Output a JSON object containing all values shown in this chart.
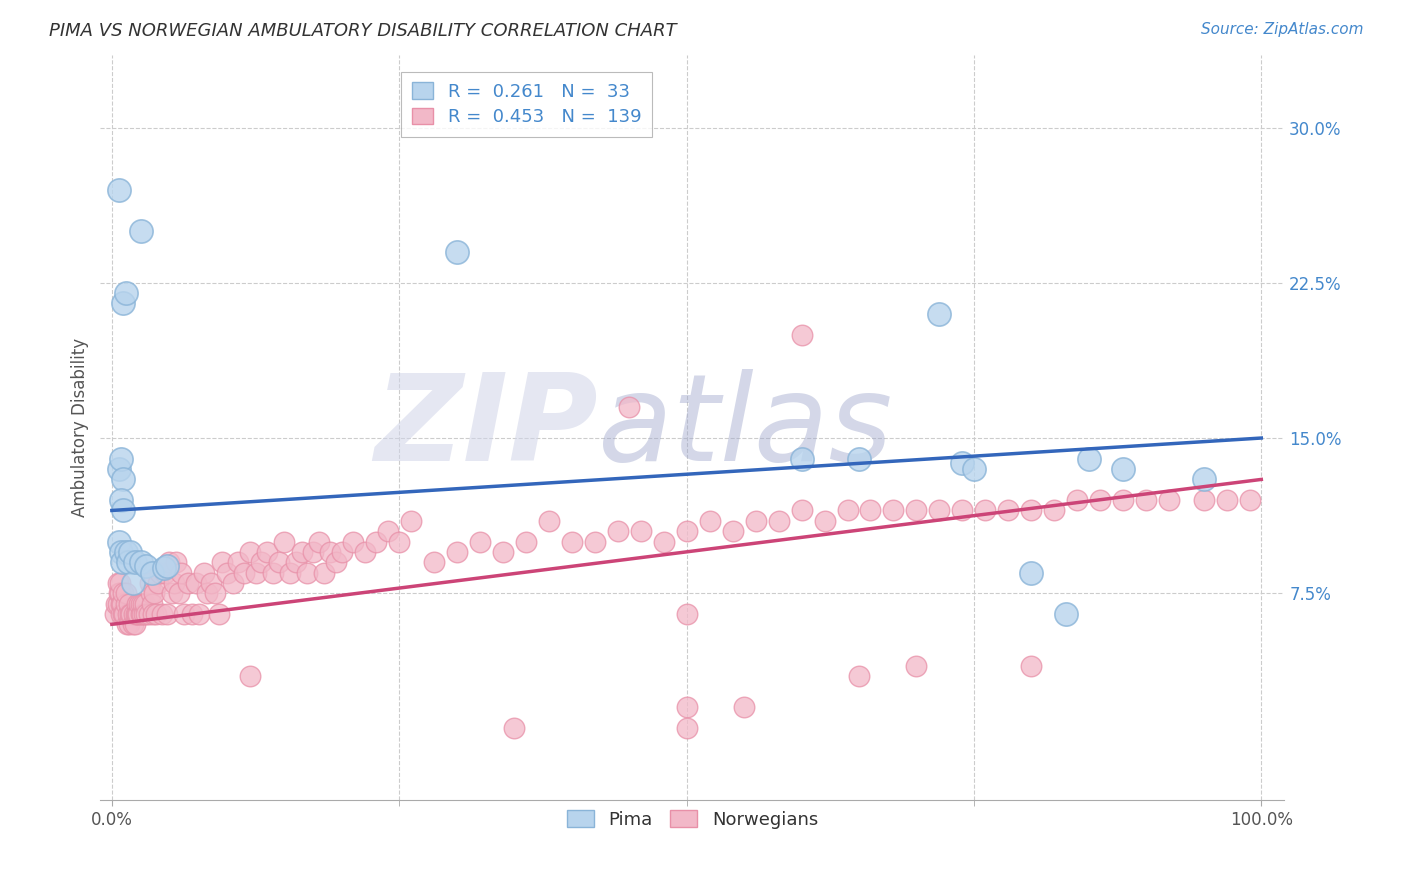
{
  "title": "PIMA VS NORWEGIAN AMBULATORY DISABILITY CORRELATION CHART",
  "source": "Source: ZipAtlas.com",
  "ylabel": "Ambulatory Disability",
  "xlabel": "",
  "xlim": [
    -0.01,
    1.02
  ],
  "ylim": [
    -0.025,
    0.335
  ],
  "yticks": [
    0.075,
    0.15,
    0.225,
    0.3
  ],
  "ytick_labels": [
    "7.5%",
    "15.0%",
    "22.5%",
    "30.0%"
  ],
  "xticks": [
    0.0,
    1.0
  ],
  "xtick_labels": [
    "0.0%",
    "100.0%"
  ],
  "pima_R": 0.261,
  "pima_N": 33,
  "norw_R": 0.453,
  "norw_N": 139,
  "background_color": "#ffffff",
  "grid_color": "#cccccc",
  "pima_color": "#8ab4d8",
  "pima_fill": "#b8d4ed",
  "norw_color": "#e890a8",
  "norw_fill": "#f2b8c8",
  "line_pima_color": "#3366bb",
  "line_norw_color": "#cc4477",
  "pima_line_x0": 0.0,
  "pima_line_x1": 1.0,
  "pima_line_y0": 0.115,
  "pima_line_y1": 0.15,
  "norw_line_x0": 0.0,
  "norw_line_x1": 1.0,
  "norw_line_y0": 0.06,
  "norw_line_y1": 0.13,
  "pima_scatter": [
    [
      0.006,
      0.27
    ],
    [
      0.01,
      0.215
    ],
    [
      0.012,
      0.22
    ],
    [
      0.025,
      0.25
    ],
    [
      0.006,
      0.135
    ],
    [
      0.008,
      0.14
    ],
    [
      0.01,
      0.13
    ],
    [
      0.008,
      0.12
    ],
    [
      0.01,
      0.115
    ],
    [
      0.006,
      0.1
    ],
    [
      0.008,
      0.095
    ],
    [
      0.009,
      0.09
    ],
    [
      0.012,
      0.095
    ],
    [
      0.014,
      0.09
    ],
    [
      0.016,
      0.095
    ],
    [
      0.018,
      0.08
    ],
    [
      0.02,
      0.09
    ],
    [
      0.025,
      0.09
    ],
    [
      0.03,
      0.088
    ],
    [
      0.035,
      0.085
    ],
    [
      0.045,
      0.087
    ],
    [
      0.048,
      0.088
    ],
    [
      0.3,
      0.24
    ],
    [
      0.6,
      0.14
    ],
    [
      0.65,
      0.14
    ],
    [
      0.72,
      0.21
    ],
    [
      0.74,
      0.138
    ],
    [
      0.75,
      0.135
    ],
    [
      0.8,
      0.085
    ],
    [
      0.83,
      0.065
    ],
    [
      0.85,
      0.14
    ],
    [
      0.88,
      0.135
    ],
    [
      0.95,
      0.13
    ]
  ],
  "norw_scatter": [
    [
      0.003,
      0.065
    ],
    [
      0.004,
      0.07
    ],
    [
      0.005,
      0.07
    ],
    [
      0.005,
      0.08
    ],
    [
      0.006,
      0.075
    ],
    [
      0.007,
      0.075
    ],
    [
      0.007,
      0.08
    ],
    [
      0.008,
      0.07
    ],
    [
      0.008,
      0.065
    ],
    [
      0.009,
      0.07
    ],
    [
      0.01,
      0.065
    ],
    [
      0.01,
      0.075
    ],
    [
      0.011,
      0.065
    ],
    [
      0.012,
      0.07
    ],
    [
      0.012,
      0.075
    ],
    [
      0.013,
      0.06
    ],
    [
      0.014,
      0.065
    ],
    [
      0.015,
      0.06
    ],
    [
      0.015,
      0.07
    ],
    [
      0.016,
      0.065
    ],
    [
      0.017,
      0.065
    ],
    [
      0.018,
      0.06
    ],
    [
      0.019,
      0.065
    ],
    [
      0.02,
      0.06
    ],
    [
      0.021,
      0.065
    ],
    [
      0.022,
      0.07
    ],
    [
      0.022,
      0.065
    ],
    [
      0.023,
      0.065
    ],
    [
      0.024,
      0.07
    ],
    [
      0.025,
      0.065
    ],
    [
      0.025,
      0.07
    ],
    [
      0.026,
      0.065
    ],
    [
      0.027,
      0.07
    ],
    [
      0.028,
      0.065
    ],
    [
      0.029,
      0.07
    ],
    [
      0.03,
      0.065
    ],
    [
      0.032,
      0.065
    ],
    [
      0.033,
      0.08
    ],
    [
      0.034,
      0.075
    ],
    [
      0.035,
      0.07
    ],
    [
      0.036,
      0.065
    ],
    [
      0.037,
      0.075
    ],
    [
      0.038,
      0.065
    ],
    [
      0.04,
      0.08
    ],
    [
      0.042,
      0.085
    ],
    [
      0.044,
      0.065
    ],
    [
      0.046,
      0.085
    ],
    [
      0.048,
      0.065
    ],
    [
      0.05,
      0.09
    ],
    [
      0.052,
      0.075
    ],
    [
      0.054,
      0.08
    ],
    [
      0.056,
      0.09
    ],
    [
      0.058,
      0.075
    ],
    [
      0.06,
      0.085
    ],
    [
      0.063,
      0.065
    ],
    [
      0.066,
      0.08
    ],
    [
      0.07,
      0.065
    ],
    [
      0.073,
      0.08
    ],
    [
      0.076,
      0.065
    ],
    [
      0.08,
      0.085
    ],
    [
      0.083,
      0.075
    ],
    [
      0.086,
      0.08
    ],
    [
      0.09,
      0.075
    ],
    [
      0.093,
      0.065
    ],
    [
      0.096,
      0.09
    ],
    [
      0.1,
      0.085
    ],
    [
      0.105,
      0.08
    ],
    [
      0.11,
      0.09
    ],
    [
      0.115,
      0.085
    ],
    [
      0.12,
      0.095
    ],
    [
      0.125,
      0.085
    ],
    [
      0.13,
      0.09
    ],
    [
      0.135,
      0.095
    ],
    [
      0.14,
      0.085
    ],
    [
      0.145,
      0.09
    ],
    [
      0.15,
      0.1
    ],
    [
      0.155,
      0.085
    ],
    [
      0.16,
      0.09
    ],
    [
      0.165,
      0.095
    ],
    [
      0.17,
      0.085
    ],
    [
      0.175,
      0.095
    ],
    [
      0.18,
      0.1
    ],
    [
      0.185,
      0.085
    ],
    [
      0.19,
      0.095
    ],
    [
      0.195,
      0.09
    ],
    [
      0.2,
      0.095
    ],
    [
      0.21,
      0.1
    ],
    [
      0.22,
      0.095
    ],
    [
      0.23,
      0.1
    ],
    [
      0.24,
      0.105
    ],
    [
      0.25,
      0.1
    ],
    [
      0.26,
      0.11
    ],
    [
      0.28,
      0.09
    ],
    [
      0.3,
      0.095
    ],
    [
      0.32,
      0.1
    ],
    [
      0.34,
      0.095
    ],
    [
      0.36,
      0.1
    ],
    [
      0.38,
      0.11
    ],
    [
      0.4,
      0.1
    ],
    [
      0.42,
      0.1
    ],
    [
      0.44,
      0.105
    ],
    [
      0.46,
      0.105
    ],
    [
      0.48,
      0.1
    ],
    [
      0.5,
      0.105
    ],
    [
      0.52,
      0.11
    ],
    [
      0.54,
      0.105
    ],
    [
      0.56,
      0.11
    ],
    [
      0.58,
      0.11
    ],
    [
      0.6,
      0.115
    ],
    [
      0.62,
      0.11
    ],
    [
      0.64,
      0.115
    ],
    [
      0.66,
      0.115
    ],
    [
      0.68,
      0.115
    ],
    [
      0.7,
      0.115
    ],
    [
      0.72,
      0.115
    ],
    [
      0.74,
      0.115
    ],
    [
      0.76,
      0.115
    ],
    [
      0.78,
      0.115
    ],
    [
      0.8,
      0.115
    ],
    [
      0.82,
      0.115
    ],
    [
      0.84,
      0.12
    ],
    [
      0.86,
      0.12
    ],
    [
      0.88,
      0.12
    ],
    [
      0.9,
      0.12
    ],
    [
      0.92,
      0.12
    ],
    [
      0.95,
      0.12
    ],
    [
      0.97,
      0.12
    ],
    [
      0.99,
      0.12
    ],
    [
      0.45,
      0.165
    ],
    [
      0.5,
      0.02
    ],
    [
      0.55,
      0.02
    ],
    [
      0.6,
      0.2
    ],
    [
      0.65,
      0.035
    ],
    [
      0.5,
      0.065
    ],
    [
      0.12,
      0.035
    ],
    [
      0.35,
      0.01
    ],
    [
      0.5,
      0.01
    ],
    [
      0.7,
      0.04
    ],
    [
      0.8,
      0.04
    ]
  ]
}
